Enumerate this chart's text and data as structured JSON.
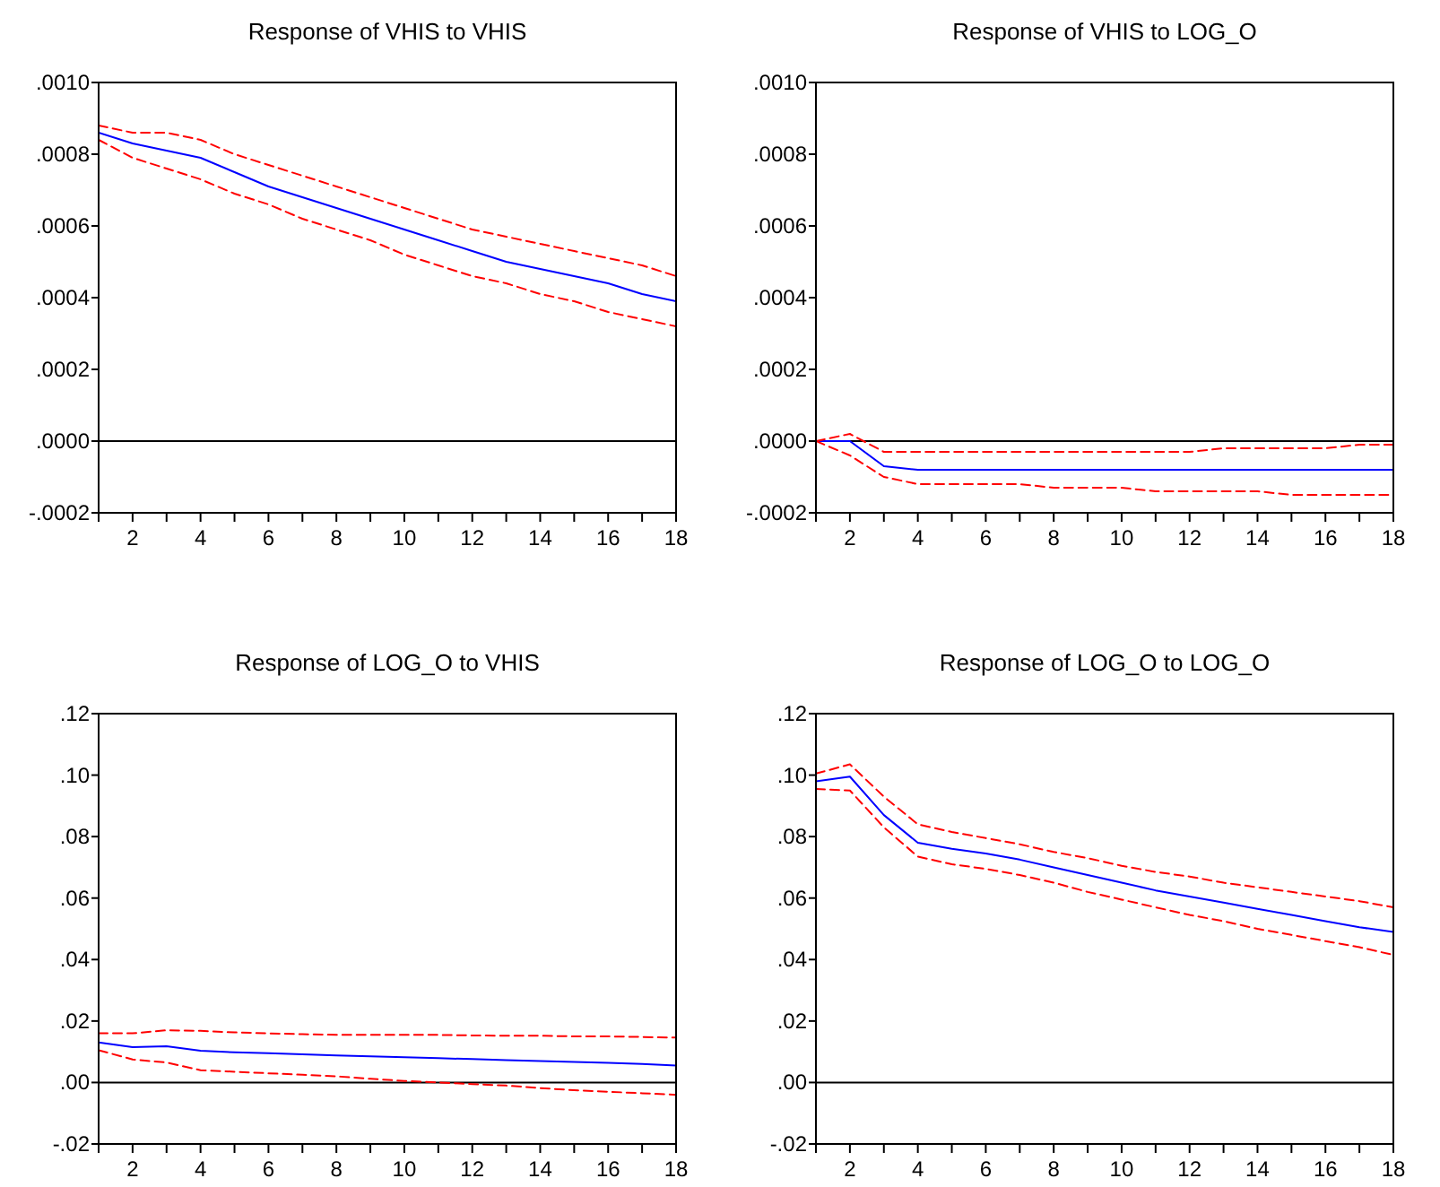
{
  "chart_data": [
    {
      "type": "line",
      "title": "Response of VHIS to VHIS",
      "x": [
        1,
        2,
        3,
        4,
        5,
        6,
        7,
        8,
        9,
        10,
        11,
        12,
        13,
        14,
        15,
        16,
        17,
        18
      ],
      "xlim": [
        1,
        18
      ],
      "xticks": [
        {
          "value": 1,
          "label": null
        },
        2,
        {
          "value": 3,
          "label": null
        },
        4,
        {
          "value": 5,
          "label": null
        },
        6,
        {
          "value": 7,
          "label": null
        },
        8,
        {
          "value": 9,
          "label": null
        },
        10,
        {
          "value": 11,
          "label": null
        },
        12,
        {
          "value": 13,
          "label": null
        },
        14,
        {
          "value": 15,
          "label": null
        },
        16,
        {
          "value": 17,
          "label": null
        },
        18
      ],
      "ylim": [
        -0.0002,
        0.001
      ],
      "yticks": [
        {
          "value": -0.0002,
          "label": "-.0002"
        },
        {
          "value": 0,
          "label": ".0000"
        },
        {
          "value": 0.0002,
          "label": ".0002"
        },
        {
          "value": 0.0004,
          "label": ".0004"
        },
        {
          "value": 0.0006,
          "label": ".0006"
        },
        {
          "value": 0.0008,
          "label": ".0008"
        },
        {
          "value": 0.001,
          "label": ".0010"
        }
      ],
      "series": [
        {
          "color": "#0000ff",
          "line_style": "solid",
          "values": [
            0.00086,
            0.00083,
            0.00081,
            0.00079,
            0.00075,
            0.00071,
            0.00068,
            0.00065,
            0.00062,
            0.00059,
            0.00056,
            0.00053,
            0.0005,
            0.00048,
            0.00046,
            0.00044,
            0.00041,
            0.00039
          ]
        },
        {
          "color": "#ff0000",
          "line_style": "dashed",
          "values": [
            0.00088,
            0.00086,
            0.00086,
            0.00084,
            0.0008,
            0.00077,
            0.00074,
            0.00071,
            0.00068,
            0.00065,
            0.00062,
            0.00059,
            0.00057,
            0.00055,
            0.00053,
            0.00051,
            0.00049,
            0.00046
          ]
        },
        {
          "color": "#ff0000",
          "line_style": "dashed",
          "values": [
            0.00084,
            0.00079,
            0.00076,
            0.00073,
            0.00069,
            0.00066,
            0.00062,
            0.00059,
            0.00056,
            0.00052,
            0.00049,
            0.00046,
            0.00044,
            0.00041,
            0.00039,
            0.00036,
            0.00034,
            0.00032
          ]
        }
      ],
      "ref_lines": [
        {
          "axis": "y",
          "value": 0,
          "color": "#000000"
        }
      ],
      "grid": false
    },
    {
      "type": "line",
      "title": "Response of VHIS to LOG_O",
      "x": [
        1,
        2,
        3,
        4,
        5,
        6,
        7,
        8,
        9,
        10,
        11,
        12,
        13,
        14,
        15,
        16,
        17,
        18
      ],
      "xlim": [
        1,
        18
      ],
      "xticks": [
        {
          "value": 1,
          "label": null
        },
        2,
        {
          "value": 3,
          "label": null
        },
        4,
        {
          "value": 5,
          "label": null
        },
        6,
        {
          "value": 7,
          "label": null
        },
        8,
        {
          "value": 9,
          "label": null
        },
        10,
        {
          "value": 11,
          "label": null
        },
        12,
        {
          "value": 13,
          "label": null
        },
        14,
        {
          "value": 15,
          "label": null
        },
        16,
        {
          "value": 17,
          "label": null
        },
        18
      ],
      "ylim": [
        -0.0002,
        0.001
      ],
      "yticks": [
        {
          "value": -0.0002,
          "label": "-.0002"
        },
        {
          "value": 0,
          "label": ".0000"
        },
        {
          "value": 0.0002,
          "label": ".0002"
        },
        {
          "value": 0.0004,
          "label": ".0004"
        },
        {
          "value": 0.0006,
          "label": ".0006"
        },
        {
          "value": 0.0008,
          "label": ".0008"
        },
        {
          "value": 0.001,
          "label": ".0010"
        }
      ],
      "series": [
        {
          "color": "#0000ff",
          "line_style": "solid",
          "values": [
            0,
            0,
            -7e-05,
            -8e-05,
            -8e-05,
            -8e-05,
            -8e-05,
            -8e-05,
            -8e-05,
            -8e-05,
            -8e-05,
            -8e-05,
            -8e-05,
            -8e-05,
            -8e-05,
            -8e-05,
            -8e-05,
            -8e-05
          ]
        },
        {
          "color": "#ff0000",
          "line_style": "dashed",
          "values": [
            0,
            2e-05,
            -3e-05,
            -3e-05,
            -3e-05,
            -3e-05,
            -3e-05,
            -3e-05,
            -3e-05,
            -3e-05,
            -3e-05,
            -3e-05,
            -2e-05,
            -2e-05,
            -2e-05,
            -2e-05,
            -1e-05,
            -1e-05
          ]
        },
        {
          "color": "#ff0000",
          "line_style": "dashed",
          "values": [
            0,
            -4e-05,
            -0.0001,
            -0.00012,
            -0.00012,
            -0.00012,
            -0.00012,
            -0.00013,
            -0.00013,
            -0.00013,
            -0.00014,
            -0.00014,
            -0.00014,
            -0.00014,
            -0.00015,
            -0.00015,
            -0.00015,
            -0.00015
          ]
        }
      ],
      "ref_lines": [
        {
          "axis": "y",
          "value": 0,
          "color": "#000000"
        }
      ],
      "grid": false
    },
    {
      "type": "line",
      "title": "Response of LOG_O to VHIS",
      "x": [
        1,
        2,
        3,
        4,
        5,
        6,
        7,
        8,
        9,
        10,
        11,
        12,
        13,
        14,
        15,
        16,
        17,
        18
      ],
      "xlim": [
        1,
        18
      ],
      "xticks": [
        {
          "value": 1,
          "label": null
        },
        2,
        {
          "value": 3,
          "label": null
        },
        4,
        {
          "value": 5,
          "label": null
        },
        6,
        {
          "value": 7,
          "label": null
        },
        8,
        {
          "value": 9,
          "label": null
        },
        10,
        {
          "value": 11,
          "label": null
        },
        12,
        {
          "value": 13,
          "label": null
        },
        14,
        {
          "value": 15,
          "label": null
        },
        16,
        {
          "value": 17,
          "label": null
        },
        18
      ],
      "ylim": [
        -0.02,
        0.12
      ],
      "yticks": [
        {
          "value": -0.02,
          "label": "-.02"
        },
        {
          "value": 0,
          "label": ".00"
        },
        {
          "value": 0.02,
          "label": ".02"
        },
        {
          "value": 0.04,
          "label": ".04"
        },
        {
          "value": 0.06,
          "label": ".06"
        },
        {
          "value": 0.08,
          "label": ".08"
        },
        {
          "value": 0.1,
          "label": ".10"
        },
        {
          "value": 0.12,
          "label": ".12"
        }
      ],
      "series": [
        {
          "color": "#0000ff",
          "line_style": "solid",
          "values": [
            0.013,
            0.0115,
            0.0118,
            0.0103,
            0.0098,
            0.0095,
            0.0092,
            0.0088,
            0.0085,
            0.0082,
            0.0079,
            0.0076,
            0.0073,
            0.007,
            0.0067,
            0.0064,
            0.006,
            0.0055
          ]
        },
        {
          "color": "#ff0000",
          "line_style": "dashed",
          "values": [
            0.016,
            0.016,
            0.017,
            0.0168,
            0.0163,
            0.016,
            0.0157,
            0.0155,
            0.0155,
            0.0155,
            0.0155,
            0.0153,
            0.0152,
            0.0152,
            0.015,
            0.015,
            0.0148,
            0.0146
          ]
        },
        {
          "color": "#ff0000",
          "line_style": "dashed",
          "values": [
            0.0105,
            0.0075,
            0.0065,
            0.004,
            0.0035,
            0.003,
            0.0025,
            0.002,
            0.0012,
            0.0005,
            0,
            -0.0005,
            -0.001,
            -0.0018,
            -0.0025,
            -0.003,
            -0.0035,
            -0.004
          ]
        }
      ],
      "ref_lines": [
        {
          "axis": "y",
          "value": 0,
          "color": "#000000"
        }
      ],
      "grid": false
    },
    {
      "type": "line",
      "title": "Response of LOG_O to LOG_O",
      "x": [
        1,
        2,
        3,
        4,
        5,
        6,
        7,
        8,
        9,
        10,
        11,
        12,
        13,
        14,
        15,
        16,
        17,
        18
      ],
      "xlim": [
        1,
        18
      ],
      "xticks": [
        {
          "value": 1,
          "label": null
        },
        2,
        {
          "value": 3,
          "label": null
        },
        4,
        {
          "value": 5,
          "label": null
        },
        6,
        {
          "value": 7,
          "label": null
        },
        8,
        {
          "value": 9,
          "label": null
        },
        10,
        {
          "value": 11,
          "label": null
        },
        12,
        {
          "value": 13,
          "label": null
        },
        14,
        {
          "value": 15,
          "label": null
        },
        16,
        {
          "value": 17,
          "label": null
        },
        18
      ],
      "ylim": [
        -0.02,
        0.12
      ],
      "yticks": [
        {
          "value": -0.02,
          "label": "-.02"
        },
        {
          "value": 0,
          "label": ".00"
        },
        {
          "value": 0.02,
          "label": ".02"
        },
        {
          "value": 0.04,
          "label": ".04"
        },
        {
          "value": 0.06,
          "label": ".06"
        },
        {
          "value": 0.08,
          "label": ".08"
        },
        {
          "value": 0.1,
          "label": ".10"
        },
        {
          "value": 0.12,
          "label": ".12"
        }
      ],
      "series": [
        {
          "color": "#0000ff",
          "line_style": "solid",
          "values": [
            0.098,
            0.0995,
            0.087,
            0.078,
            0.076,
            0.0745,
            0.0725,
            0.07,
            0.0675,
            0.065,
            0.0625,
            0.0605,
            0.0585,
            0.0565,
            0.0545,
            0.0525,
            0.0505,
            0.049
          ]
        },
        {
          "color": "#ff0000",
          "line_style": "dashed",
          "values": [
            0.1005,
            0.1035,
            0.093,
            0.084,
            0.0815,
            0.0795,
            0.0775,
            0.075,
            0.073,
            0.0705,
            0.0685,
            0.067,
            0.065,
            0.0635,
            0.062,
            0.0605,
            0.059,
            0.057
          ]
        },
        {
          "color": "#ff0000",
          "line_style": "dashed",
          "values": [
            0.0955,
            0.095,
            0.083,
            0.0735,
            0.071,
            0.0695,
            0.0675,
            0.065,
            0.062,
            0.0595,
            0.057,
            0.0545,
            0.0525,
            0.05,
            0.048,
            0.046,
            0.044,
            0.0415
          ]
        }
      ],
      "ref_lines": [
        {
          "axis": "y",
          "value": 0,
          "color": "#000000"
        }
      ],
      "grid": false
    }
  ]
}
